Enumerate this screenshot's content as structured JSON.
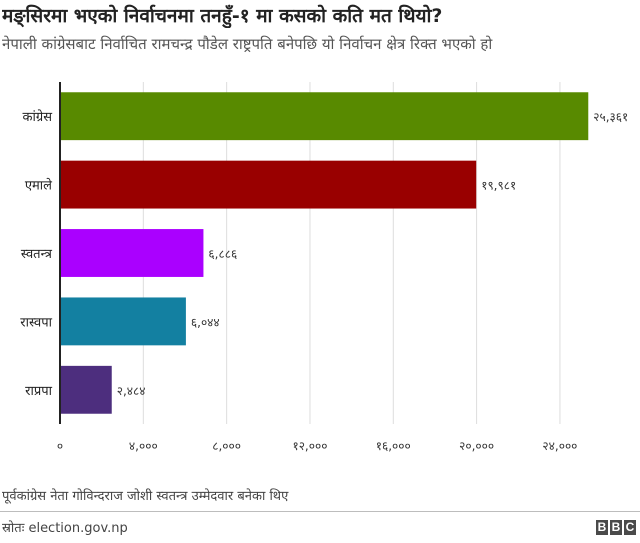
{
  "header": {
    "title": "मङ्सिरमा भएको निर्वाचनमा तनहुँ-१ मा कसको कति मत थियो?",
    "subtitle": "नेपाली कांग्रेसबाट निर्वाचित रामचन्द्र पौडेल राष्ट्रपति बनेपछि यो निर्वाचन क्षेत्र रिक्त भएको हो"
  },
  "footer": {
    "note": "पूर्वकांग्रेस नेता गोविन्दराज जोशी स्वतन्त्र उम्मेदवार बनेका थिए",
    "source": "स्रोतः election.gov.np",
    "logo_letters": [
      "B",
      "B",
      "C"
    ]
  },
  "chart_data": {
    "type": "bar",
    "orientation": "horizontal",
    "categories": [
      "कांग्रेस",
      "एमाले",
      "स्वतन्त्र",
      "रास्वपा",
      "राप्रपा"
    ],
    "values": [
      25361,
      19981,
      6886,
      6044,
      2484
    ],
    "value_labels": [
      "२५,३६१",
      "१९,९८१",
      "६,८८६",
      "६,०४४",
      "२,४८४"
    ],
    "colors": [
      "#588a00",
      "#990000",
      "#aa00ff",
      "#1380a1",
      "#4d2e7e"
    ],
    "x_ticks": [
      0,
      4000,
      8000,
      12000,
      16000,
      20000,
      24000
    ],
    "x_tick_labels": [
      "०",
      "४,०००",
      "८,०००",
      "१२,०००",
      "१६,०००",
      "२०,०००",
      "२४,०००"
    ],
    "xlim": [
      0,
      26500
    ],
    "grid": true
  }
}
